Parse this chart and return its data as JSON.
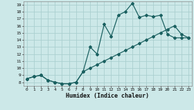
{
  "xlabel": "Humidex (Indice chaleur)",
  "bg_color": "#cce8e8",
  "grid_color": "#aacfcf",
  "line_color": "#1a6060",
  "xlim": [
    -0.5,
    23.5
  ],
  "ylim": [
    7.5,
    19.5
  ],
  "xticks": [
    0,
    1,
    2,
    3,
    4,
    5,
    6,
    7,
    8,
    9,
    10,
    11,
    12,
    13,
    14,
    15,
    16,
    17,
    18,
    19,
    20,
    21,
    22,
    23
  ],
  "yticks": [
    8,
    9,
    10,
    11,
    12,
    13,
    14,
    15,
    16,
    17,
    18,
    19
  ],
  "curve1_x": [
    0,
    1,
    2,
    3,
    4,
    5,
    6,
    7,
    8,
    9,
    10,
    11,
    12,
    13,
    14,
    15,
    16,
    17,
    18,
    19,
    20,
    21,
    22,
    23
  ],
  "curve1_y": [
    8.5,
    8.8,
    9.0,
    8.3,
    8.0,
    7.8,
    7.8,
    8.0,
    9.5,
    13.0,
    12.0,
    16.2,
    14.5,
    17.5,
    18.0,
    19.2,
    17.2,
    17.5,
    17.3,
    17.5,
    14.8,
    14.3,
    14.3,
    14.3
  ],
  "curve2_x": [
    0,
    1,
    2,
    3,
    4,
    5,
    6,
    7,
    8,
    9,
    10,
    11,
    12,
    13,
    14,
    15,
    16,
    17,
    18,
    19,
    20,
    21,
    22,
    23
  ],
  "curve2_y": [
    8.5,
    8.8,
    9.0,
    8.3,
    8.0,
    7.8,
    7.8,
    8.0,
    9.5,
    10.0,
    10.5,
    11.0,
    11.5,
    12.0,
    12.5,
    13.0,
    13.5,
    14.0,
    14.5,
    15.0,
    15.5,
    16.0,
    14.8,
    14.3
  ],
  "markersize": 2.0,
  "linewidth": 0.9
}
